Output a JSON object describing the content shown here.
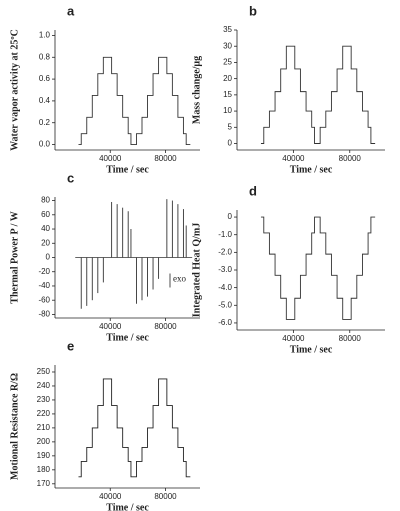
{
  "chart_data": [
    {
      "type": "line",
      "title": "a",
      "ylabel": "Water vapor activity at 25ºC",
      "xlabel": "Time / sec",
      "xlim": [
        0,
        105000
      ],
      "xticks": [
        40000,
        80000
      ],
      "ylim": [
        -0.05,
        1.05
      ],
      "yticks": [
        {
          "value": 0,
          "label": "0.0"
        },
        0.2,
        0.4,
        0.6,
        0.8,
        {
          "value": 1,
          "label": "1.0"
        }
      ],
      "color": "#333333",
      "x": [
        17000,
        19000,
        19000,
        23000,
        23000,
        27000,
        27000,
        31000,
        31000,
        35000,
        35000,
        41000,
        41000,
        45000,
        45000,
        49000,
        49000,
        53000,
        53000,
        55000,
        55000,
        59000,
        59000,
        63000,
        63000,
        67000,
        67000,
        71000,
        71000,
        75000,
        75000,
        81000,
        81000,
        85000,
        85000,
        89000,
        89000,
        93000,
        93000,
        95000,
        95000,
        98000
      ],
      "values": [
        0,
        0,
        0.1,
        0.1,
        0.25,
        0.25,
        0.45,
        0.45,
        0.65,
        0.65,
        0.8,
        0.8,
        0.65,
        0.65,
        0.45,
        0.45,
        0.25,
        0.25,
        0.1,
        0.1,
        0,
        0,
        0.1,
        0.1,
        0.25,
        0.25,
        0.45,
        0.45,
        0.65,
        0.65,
        0.8,
        0.8,
        0.65,
        0.65,
        0.45,
        0.45,
        0.25,
        0.25,
        0.1,
        0.1,
        0,
        0
      ]
    },
    {
      "type": "line",
      "title": "b",
      "ylabel": "Mass change/μg",
      "xlabel": "Time / sec",
      "xlim": [
        0,
        105000
      ],
      "xticks": [
        40000,
        80000
      ],
      "ylim": [
        -2,
        35
      ],
      "yticks": [
        0,
        5,
        10,
        15,
        20,
        25,
        30,
        35
      ],
      "color": "#333333",
      "x": [
        17000,
        19000,
        19000,
        23000,
        23000,
        27000,
        27000,
        31000,
        31000,
        35000,
        35000,
        41000,
        41000,
        45000,
        45000,
        49000,
        49000,
        53000,
        53000,
        55000,
        55000,
        59000,
        59000,
        63000,
        63000,
        67000,
        67000,
        71000,
        71000,
        75000,
        75000,
        81000,
        81000,
        85000,
        85000,
        89000,
        89000,
        93000,
        93000,
        95000,
        95000,
        98000
      ],
      "values": [
        0,
        0,
        5,
        5,
        10,
        10,
        16,
        16,
        23,
        23,
        30,
        30,
        23,
        23,
        16,
        16,
        10,
        10,
        5,
        5,
        0,
        0,
        5,
        5,
        10,
        10,
        16,
        16,
        23,
        23,
        30,
        30,
        23,
        23,
        16,
        16,
        10,
        10,
        5,
        5,
        0,
        0
      ]
    },
    {
      "type": "spike",
      "title": "c",
      "ylabel": "Thermal Power P / W",
      "xlabel": "Time /  sec",
      "annotation": "exo",
      "xlim": [
        0,
        105000
      ],
      "xticks": [
        40000,
        80000
      ],
      "ylim": [
        -85,
        85
      ],
      "yticks": [
        -80,
        -60,
        -40,
        -20,
        0,
        20,
        40,
        60,
        80
      ],
      "color": "#333333",
      "x": [
        19000,
        23000,
        27000,
        31000,
        35000,
        41000,
        45000,
        49000,
        53000,
        55000,
        59000,
        63000,
        67000,
        71000,
        75000,
        81000,
        85000,
        89000,
        93000,
        95000
      ],
      "values": [
        -72,
        -68,
        -60,
        -50,
        -35,
        78,
        75,
        70,
        65,
        40,
        -65,
        -60,
        -55,
        -45,
        -30,
        82,
        80,
        75,
        68,
        45
      ]
    },
    {
      "type": "line",
      "title": "d",
      "ylabel": "Integrated Heat Q/mJ",
      "xlabel": "Time / sec",
      "xlim": [
        0,
        105000
      ],
      "xticks": [
        40000,
        80000
      ],
      "ylim": [
        -6.4,
        0.4
      ],
      "yticks": [
        0,
        {
          "value": -1,
          "label": "-1.0"
        },
        {
          "value": -2,
          "label": "-2.0"
        },
        {
          "value": -3,
          "label": "-3.0"
        },
        {
          "value": -4,
          "label": "-4.0"
        },
        {
          "value": -5,
          "label": "-5.0"
        },
        {
          "value": -6,
          "label": "-6.0"
        }
      ],
      "color": "#333333",
      "x": [
        17000,
        19000,
        19000,
        23000,
        23000,
        27000,
        27000,
        31000,
        31000,
        35000,
        35000,
        41000,
        41000,
        45000,
        45000,
        49000,
        49000,
        53000,
        53000,
        55000,
        55000,
        59000,
        59000,
        63000,
        63000,
        67000,
        67000,
        71000,
        71000,
        75000,
        75000,
        81000,
        81000,
        85000,
        85000,
        89000,
        89000,
        93000,
        93000,
        95000,
        95000,
        98000
      ],
      "values": [
        0,
        0,
        -0.9,
        -0.9,
        -2.1,
        -2.1,
        -3.3,
        -3.3,
        -4.6,
        -4.6,
        -5.8,
        -5.8,
        -4.6,
        -4.6,
        -3.3,
        -3.3,
        -2.1,
        -2.1,
        -0.9,
        -0.9,
        0,
        0,
        -0.9,
        -0.9,
        -2.1,
        -2.1,
        -3.3,
        -3.3,
        -4.6,
        -4.6,
        -5.8,
        -5.8,
        -4.6,
        -4.6,
        -3.3,
        -3.3,
        -2.1,
        -2.1,
        -0.9,
        -0.9,
        0,
        0
      ]
    },
    {
      "type": "line",
      "title": "e",
      "ylabel": "Motional Resistance R/Ω",
      "xlabel": "Time /  sec",
      "xlim": [
        0,
        105000
      ],
      "xticks": [
        40000,
        80000
      ],
      "ylim": [
        167,
        255
      ],
      "yticks": [
        170,
        180,
        190,
        200,
        210,
        220,
        230,
        240,
        250
      ],
      "color": "#222222",
      "x": [
        17000,
        19000,
        19000,
        23000,
        23000,
        27000,
        27000,
        31000,
        31000,
        35000,
        35000,
        41000,
        41000,
        45000,
        45000,
        49000,
        49000,
        53000,
        53000,
        55000,
        55000,
        59000,
        59000,
        63000,
        63000,
        67000,
        67000,
        71000,
        71000,
        75000,
        75000,
        81000,
        81000,
        85000,
        85000,
        89000,
        89000,
        93000,
        93000,
        95000,
        95000,
        98000
      ],
      "values": [
        175,
        175,
        186,
        186,
        196,
        196,
        210,
        210,
        226,
        226,
        245,
        245,
        226,
        226,
        210,
        210,
        196,
        196,
        186,
        186,
        175,
        175,
        186,
        186,
        196,
        196,
        210,
        210,
        226,
        226,
        245,
        245,
        226,
        226,
        210,
        210,
        196,
        196,
        186,
        186,
        175,
        175
      ]
    }
  ]
}
